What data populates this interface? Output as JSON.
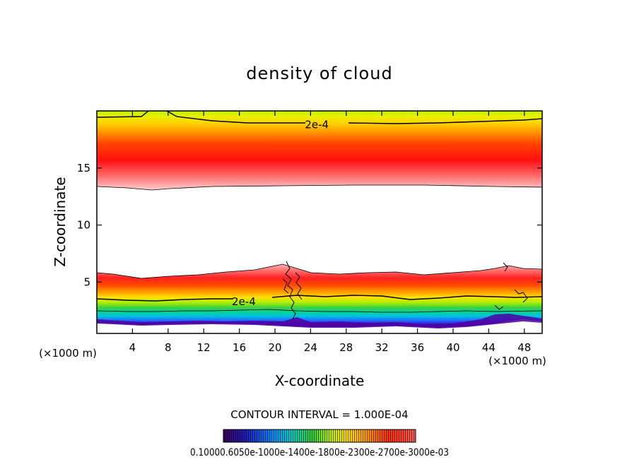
{
  "chart_data": {
    "type": "heatmap",
    "title": "density of cloud",
    "xlabel": "X-coordinate",
    "ylabel": "Z-coordinate",
    "x_unit_label": "(×1000 m)",
    "y_unit_label": "(×1000 m)",
    "xlim": [
      0,
      50
    ],
    "ylim": [
      0.5,
      20
    ],
    "x_ticks": [
      4,
      8,
      12,
      16,
      20,
      24,
      28,
      32,
      36,
      40,
      44,
      48
    ],
    "y_ticks": [
      5,
      10,
      15
    ],
    "contour_interval_text": "CONTOUR INTERVAL = 1.000E-04",
    "contour_labels": [
      {
        "text": "2e-4",
        "x": 24.7,
        "z": 18.8
      },
      {
        "text": "2e-4",
        "x": 16.5,
        "z": 3.3
      }
    ],
    "colorbar_labels_text": "0.10000.6050e-1000e-1400e-1800e-2300e-2700e-3000e-03",
    "colors": {
      "high": "#ff2000",
      "mid": "#ffe000",
      "green": "#40d040",
      "cyan": "#00c0e0",
      "blue": "#2040ff",
      "low": "#6000a0",
      "faint": "#ffb0b0"
    }
  }
}
